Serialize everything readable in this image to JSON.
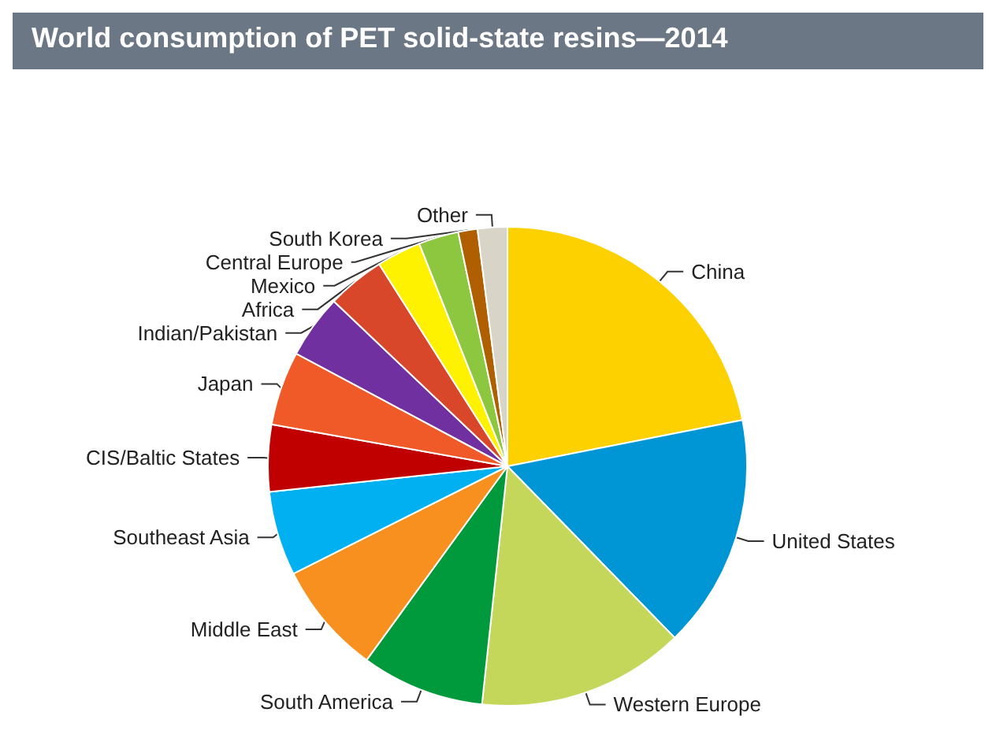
{
  "chart_data": {
    "type": "pie",
    "title": "World consumption of PET solid-state resins—2014",
    "categories": [
      "China",
      "United States",
      "Western Europe",
      "South America",
      "Middle East",
      "Southeast Asia",
      "CIS/Baltic States",
      "Japan",
      "Indian/Pakistan",
      "Africa",
      "Mexico",
      "Central Europe",
      "South Korea",
      "Other"
    ],
    "values": [
      21.9,
      15.8,
      14,
      8.3,
      7.6,
      5.7,
      4.5,
      5,
      4.3,
      3.9,
      3,
      2.7,
      1.3,
      2
    ],
    "colors": [
      "#fdd000",
      "#0096d6",
      "#c4d75a",
      "#009a3d",
      "#f7901e",
      "#00b0f0",
      "#c00000",
      "#f05a28",
      "#7030a0",
      "#d9472b",
      "#fff200",
      "#8dc63f",
      "#b05f00",
      "#d9d4c8"
    ],
    "legend": false
  }
}
